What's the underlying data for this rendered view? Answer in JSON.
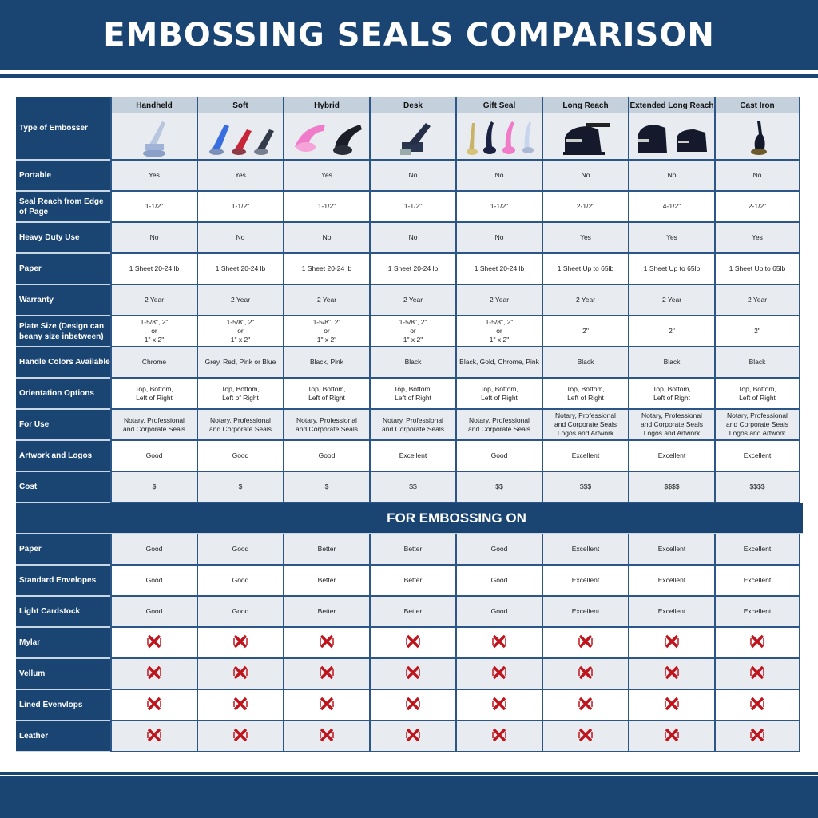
{
  "title": "EMBOSSING SEALS COMPARISON",
  "colors": {
    "brand": "#1a4573",
    "cross": "#c0141c",
    "header_cell": "#c4d0dc",
    "stripe_row": "#e8ecf0"
  },
  "type_label": "Type of Embosser",
  "columns": [
    "Handheld",
    "Soft",
    "Hybrid",
    "Desk",
    "Gift Seal",
    "Long Reach",
    "Extended Long Reach",
    "Cast Iron"
  ],
  "rows": [
    {
      "label": "Portable",
      "values": [
        "Yes",
        "Yes",
        "Yes",
        "No",
        "No",
        "No",
        "No",
        "No"
      ]
    },
    {
      "label": "Seal Reach from Edge of Page",
      "values": [
        "1-1/2\"",
        "1-1/2\"",
        "1-1/2\"",
        "1-1/2\"",
        "1-1/2\"",
        "2-1/2\"",
        "4-1/2\"",
        "2-1/2\""
      ]
    },
    {
      "label": "Heavy Duty Use",
      "values": [
        "No",
        "No",
        "No",
        "No",
        "No",
        "Yes",
        "Yes",
        "Yes"
      ]
    },
    {
      "label": "Paper",
      "values": [
        "1 Sheet 20-24 lb",
        "1 Sheet 20-24 lb",
        "1 Sheet 20-24 lb",
        "1 Sheet 20-24 lb",
        "1 Sheet 20-24 lb",
        "1 Sheet Up to 65lb",
        "1 Sheet Up to 65lb",
        "1 Sheet Up to 65lb"
      ]
    },
    {
      "label": "Warranty",
      "values": [
        "2 Year",
        "2 Year",
        "2 Year",
        "2 Year",
        "2 Year",
        "2 Year",
        "2 Year",
        "2 Year"
      ]
    },
    {
      "label": "Plate Size (Design can beany size inbetween)",
      "values": [
        "1-5/8\", 2\"\nor\n1\" x 2\"",
        "1-5/8\", 2\"\nor\n1\" x 2\"",
        "1-5/8\", 2\"\nor\n1\" x 2\"",
        "1-5/8\", 2\"\nor\n1\" x 2\"",
        "1-5/8\", 2\"\nor\n1\" x 2\"",
        "2\"",
        "2\"",
        "2\""
      ]
    },
    {
      "label": "Handle Colors Available",
      "values": [
        "Chrome",
        "Grey, Red, Pink or Blue",
        "Black, Pink",
        "Black",
        "Black, Gold, Chrome, Pink",
        "Black",
        "Black",
        "Black"
      ]
    },
    {
      "label": "Orientation Options",
      "values": [
        "Top, Bottom,\nLeft of Right",
        "Top, Bottom,\nLeft of Right",
        "Top, Bottom,\nLeft of Right",
        "Top, Bottom,\nLeft of Right",
        "Top, Bottom,\nLeft of Right",
        "Top, Bottom,\nLeft of Right",
        "Top, Bottom,\nLeft of Right",
        "Top, Bottom,\nLeft of Right"
      ]
    },
    {
      "label": "For Use",
      "values": [
        "Notary, Professional\nand Corporate Seals",
        "Notary, Professional\nand Corporate Seals",
        "Notary, Professional\nand Corporate Seals",
        "Notary, Professional\nand Corporate Seals",
        "Notary, Professional\nand Corporate Seals",
        "Notary, Professional\nand Corporate Seals\nLogos and Artwork",
        "Notary, Professional\nand Corporate Seals\nLogos and Artwork",
        "Notary, Professional\nand Corporate Seals\nLogos and Artwork"
      ]
    },
    {
      "label": "Artwork and Logos",
      "values": [
        "Good",
        "Good",
        "Good",
        "Excellent",
        "Good",
        "Excellent",
        "Excellent",
        "Excellent"
      ]
    },
    {
      "label": "Cost",
      "values": [
        "$",
        "$",
        "$",
        "$$",
        "$$",
        "$$$",
        "$$$$",
        "$$$$"
      ]
    }
  ],
  "section_title": "FOR EMBOSSING ON",
  "embossing_rows": [
    {
      "label": "Paper",
      "values": [
        "Good",
        "Good",
        "Better",
        "Better",
        "Good",
        "Excellent",
        "Excellent",
        "Excellent"
      ]
    },
    {
      "label": "Standard Envelopes",
      "values": [
        "Good",
        "Good",
        "Better",
        "Better",
        "Good",
        "Excellent",
        "Excellent",
        "Excellent"
      ]
    },
    {
      "label": "Light Cardstock",
      "values": [
        "Good",
        "Good",
        "Better",
        "Better",
        "Good",
        "Excellent",
        "Excellent",
        "Excellent"
      ]
    },
    {
      "label": "Mylar",
      "values": [
        "x",
        "x",
        "x",
        "x",
        "x",
        "x",
        "x",
        "x"
      ]
    },
    {
      "label": "Vellum",
      "values": [
        "x",
        "x",
        "x",
        "x",
        "x",
        "x",
        "x",
        "x"
      ]
    },
    {
      "label": "Lined Evenvlops",
      "values": [
        "x",
        "x",
        "x",
        "x",
        "x",
        "x",
        "x",
        "x"
      ]
    },
    {
      "label": "Leather",
      "values": [
        "x",
        "x",
        "x",
        "x",
        "x",
        "x",
        "x",
        "x"
      ]
    }
  ],
  "icons": {
    "not_supported": "cross-icon",
    "embosser_images": [
      "handheld-embosser",
      "soft-embossers",
      "hybrid-embossers",
      "desk-embosser",
      "gift-seal-embossers",
      "long-reach-embosser",
      "extended-long-reach-embossers",
      "cast-iron-embosser"
    ]
  }
}
